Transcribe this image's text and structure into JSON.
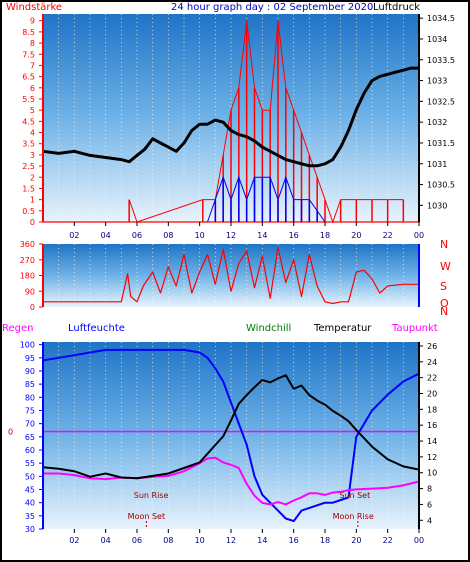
{
  "header": {
    "left_label": "Windstärke",
    "title": "24 hour graph day : 02 September 2020",
    "right_label": "Luftdruck"
  },
  "legend": {
    "regen": "Regen",
    "luftfeuchte": "Luftfeuchte",
    "windchill": "Windchill",
    "temperatur": "Temperatur",
    "taupunkt": "Taupunkt"
  },
  "colors": {
    "wind": "#ff0000",
    "gust": "#0000ff",
    "pressure": "#000000",
    "humidity": "#0000ff",
    "dewpoint": "#ff00ff",
    "temperature": "#000000",
    "windchill": "#008000",
    "regen": "#ff00ff"
  },
  "annotations": {
    "sun_rise": "Sun Rise",
    "sun_set": "Sun Set",
    "moon_set": "Moon Set",
    "moon_rise": "Moon Rise"
  },
  "direction_labels": [
    "N",
    "W",
    "S",
    "O",
    "N"
  ],
  "chart_data": [
    {
      "type": "line",
      "x_ticks": [
        "02",
        "04",
        "06",
        "08",
        "10",
        "12",
        "14",
        "16",
        "18",
        "20",
        "22",
        "00"
      ],
      "xlim": [
        0,
        24
      ],
      "left_axis": {
        "label": "Windstärke",
        "ticks": [
          "0",
          "0.5",
          "1",
          "1.5",
          "2",
          "2.5",
          "3",
          "3.5",
          "4",
          "4.5",
          "5",
          "5.5",
          "6",
          "6.5",
          "7",
          "7.5",
          "8",
          "8.5",
          "9"
        ],
        "ylim": [
          0,
          9.3
        ]
      },
      "right_axis": {
        "label": "Luftdruck",
        "ticks": [
          "1030",
          "1030.5",
          "1031",
          "1031.5",
          "1032",
          "1032.5",
          "1033",
          "1033.5",
          "1034",
          "1034.5"
        ],
        "ylim": [
          1029.6,
          1034.6
        ]
      },
      "series": [
        {
          "name": "Luftdruck",
          "axis": "right",
          "x": [
            0,
            1,
            2,
            3,
            4,
            5,
            5.5,
            6,
            6.5,
            7,
            7.5,
            8,
            8.5,
            9,
            9.5,
            10,
            10.5,
            11,
            11.5,
            12,
            12.5,
            13,
            13.5,
            14,
            14.5,
            15,
            15.5,
            16,
            16.5,
            17,
            17.5,
            18,
            18.5,
            19,
            19.5,
            20,
            20.5,
            21,
            21.5,
            22,
            22.5,
            23,
            23.5,
            24
          ],
          "y": [
            1031.3,
            1031.25,
            1031.3,
            1031.2,
            1031.15,
            1031.1,
            1031.05,
            1031.2,
            1031.35,
            1031.6,
            1031.5,
            1031.4,
            1031.3,
            1031.5,
            1031.8,
            1031.95,
            1031.95,
            1032.05,
            1032.0,
            1031.8,
            1031.7,
            1031.65,
            1031.55,
            1031.4,
            1031.3,
            1031.2,
            1031.1,
            1031.05,
            1031.0,
            1030.95,
            1030.95,
            1031.0,
            1031.1,
            1031.4,
            1031.8,
            1032.3,
            1032.7,
            1033.0,
            1033.1,
            1033.15,
            1033.2,
            1033.25,
            1033.3,
            1033.3
          ]
        },
        {
          "name": "Windstärke",
          "axis": "left",
          "x": [
            5.5,
            6,
            10.2,
            11,
            11.5,
            12,
            12.5,
            13,
            13.5,
            14,
            14.5,
            15,
            15.5,
            16,
            16.5,
            17,
            17.5,
            18,
            18.5,
            19,
            20,
            21,
            22,
            23
          ],
          "y": [
            1,
            0,
            1,
            1,
            3,
            5,
            6,
            9,
            6,
            5,
            5,
            9,
            6,
            5,
            4,
            3,
            2,
            1,
            0,
            1,
            1,
            1,
            1,
            1
          ]
        },
        {
          "name": "Böen",
          "axis": "left",
          "x": [
            10.5,
            11,
            11.5,
            12,
            12.5,
            13,
            13.5,
            14,
            14.5,
            15,
            15.5,
            16,
            16.5,
            17,
            17.5,
            18
          ],
          "y": [
            0,
            1,
            2,
            1,
            2,
            1,
            2,
            2,
            2,
            1,
            2,
            1,
            1,
            1,
            0.5,
            0
          ]
        }
      ]
    },
    {
      "type": "line",
      "x_ticks": [
        "02",
        "04",
        "06",
        "08",
        "10",
        "12",
        "14",
        "16",
        "18",
        "20",
        "22",
        "00"
      ],
      "xlim": [
        0,
        24
      ],
      "left_axis": {
        "ticks": [
          "0",
          "90",
          "180",
          "270",
          "360"
        ],
        "ylim": [
          0,
          360
        ]
      },
      "series": [
        {
          "name": "Windrichtung",
          "x": [
            0,
            1,
            2,
            3,
            4,
            5,
            5.4,
            5.6,
            6,
            6.4,
            7,
            7.5,
            8,
            8.5,
            9,
            9.5,
            10,
            10.5,
            11,
            11.5,
            12,
            12.5,
            13,
            13.5,
            14,
            14.5,
            15,
            15.5,
            16,
            16.5,
            17,
            17.5,
            18,
            18.5,
            19,
            19.5,
            20,
            20.5,
            21,
            21.5,
            22,
            23,
            24
          ],
          "y": [
            30,
            30,
            30,
            30,
            30,
            30,
            190,
            60,
            30,
            120,
            200,
            80,
            230,
            120,
            300,
            80,
            200,
            300,
            130,
            330,
            90,
            250,
            320,
            110,
            290,
            50,
            340,
            140,
            270,
            60,
            300,
            120,
            30,
            20,
            30,
            30,
            200,
            210,
            160,
            80,
            120,
            130,
            130
          ]
        }
      ]
    },
    {
      "type": "line",
      "x_ticks": [
        "02",
        "04",
        "06",
        "08",
        "10",
        "12",
        "14",
        "16",
        "18",
        "20",
        "22",
        "00"
      ],
      "xlim": [
        0,
        24
      ],
      "left_axis": {
        "label": "Luftfeuchte",
        "ticks": [
          "30",
          "35",
          "40",
          "45",
          "50",
          "55",
          "60",
          "65",
          "70",
          "75",
          "80",
          "85",
          "90",
          "95",
          "100"
        ],
        "ylim": [
          30,
          101
        ]
      },
      "right_axis": {
        "label": "Temperatur",
        "ticks": [
          "4",
          "6",
          "8",
          "10",
          "12",
          "14",
          "16",
          "18",
          "20",
          "22",
          "24",
          "26"
        ],
        "ylim": [
          2.9,
          26.5
        ]
      },
      "series": [
        {
          "name": "Luftfeuchte",
          "axis": "left",
          "x": [
            0,
            1,
            2,
            3,
            4,
            5,
            6,
            7,
            8,
            9,
            10,
            10.5,
            11,
            11.5,
            12,
            12.5,
            13,
            13.5,
            14,
            14.5,
            15,
            15.5,
            16,
            16.5,
            17,
            17.5,
            18,
            18.5,
            19,
            19.5,
            20,
            21,
            22,
            23,
            24
          ],
          "y": [
            94,
            95,
            96,
            97,
            98,
            98,
            98,
            98,
            98,
            98,
            97,
            95,
            91,
            86,
            78,
            70,
            62,
            50,
            43,
            40,
            37,
            34,
            33,
            37,
            38,
            39,
            40,
            40,
            41,
            42,
            65,
            75,
            81,
            86,
            89
          ]
        },
        {
          "name": "Temperatur",
          "axis": "right",
          "x": [
            0,
            1,
            2,
            3,
            4,
            5,
            6,
            7,
            8,
            9,
            10,
            10.5,
            11,
            11.5,
            12,
            12.5,
            13,
            13.5,
            14,
            14.5,
            15,
            15.5,
            16,
            16.5,
            17,
            17.5,
            18,
            18.5,
            19,
            19.5,
            20,
            21,
            22,
            23,
            24
          ],
          "y": [
            10.7,
            10.5,
            10.2,
            9.5,
            9.9,
            9.4,
            9.3,
            9.6,
            9.9,
            10.6,
            11.3,
            12.4,
            13.5,
            14.6,
            16.6,
            18.7,
            19.8,
            20.8,
            21.7,
            21.4,
            21.9,
            22.3,
            20.6,
            21,
            19.8,
            19.1,
            18.6,
            17.8,
            17.2,
            16.5,
            15.4,
            13.3,
            11.7,
            10.8,
            10.4
          ]
        },
        {
          "name": "Taupunkt",
          "axis": "right",
          "x": [
            0,
            1,
            2,
            3,
            4,
            5,
            6,
            7,
            8,
            9,
            10,
            10.5,
            11,
            11.5,
            12,
            12.5,
            13,
            13.5,
            14,
            14.5,
            15,
            15.5,
            16,
            16.5,
            17,
            17.5,
            18,
            18.5,
            19,
            19.5,
            20,
            21,
            22,
            23,
            24
          ],
          "y": [
            9.9,
            9.9,
            9.7,
            9.3,
            9.2,
            9.4,
            9.3,
            9.5,
            9.6,
            10.2,
            11.2,
            11.8,
            11.9,
            11.3,
            11,
            10.6,
            8.6,
            7.1,
            6.2,
            6.0,
            6.3,
            6.0,
            6.5,
            6.9,
            7.4,
            7.4,
            7.2,
            7.5,
            7.6,
            7.8,
            7.9,
            8,
            8.1,
            8.4,
            8.9
          ]
        },
        {
          "name": "Regen",
          "axis": "left",
          "x": [
            0,
            24
          ],
          "y": [
            67,
            67
          ]
        }
      ],
      "regen_label": "0"
    }
  ]
}
